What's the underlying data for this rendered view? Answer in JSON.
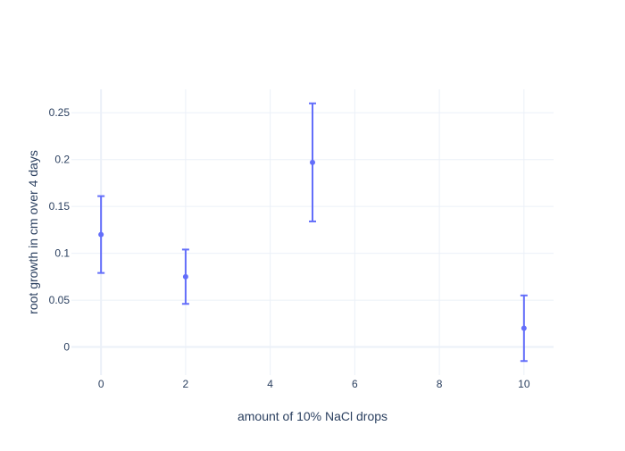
{
  "chart_data": {
    "type": "scatter",
    "xlabel": "amount of 10% NaCl drops",
    "ylabel": "root growth in cm over 4 days",
    "xlim": [
      -0.7,
      10.7
    ],
    "ylim": [
      -0.03,
      0.275
    ],
    "x_ticks": [
      0,
      2,
      4,
      6,
      8,
      10
    ],
    "y_ticks": [
      0,
      0.05,
      0.1,
      0.15,
      0.2,
      0.25
    ],
    "y_tick_labels": [
      "0",
      "0.05",
      "0.1",
      "0.15",
      "0.2",
      "0.25"
    ],
    "grid": true,
    "series": [
      {
        "x": [
          0,
          2,
          5,
          10
        ],
        "y": [
          0.12,
          0.075,
          0.197,
          0.02
        ],
        "error_y": [
          0.041,
          0.029,
          0.063,
          0.035
        ],
        "color": "#636efa"
      }
    ]
  }
}
